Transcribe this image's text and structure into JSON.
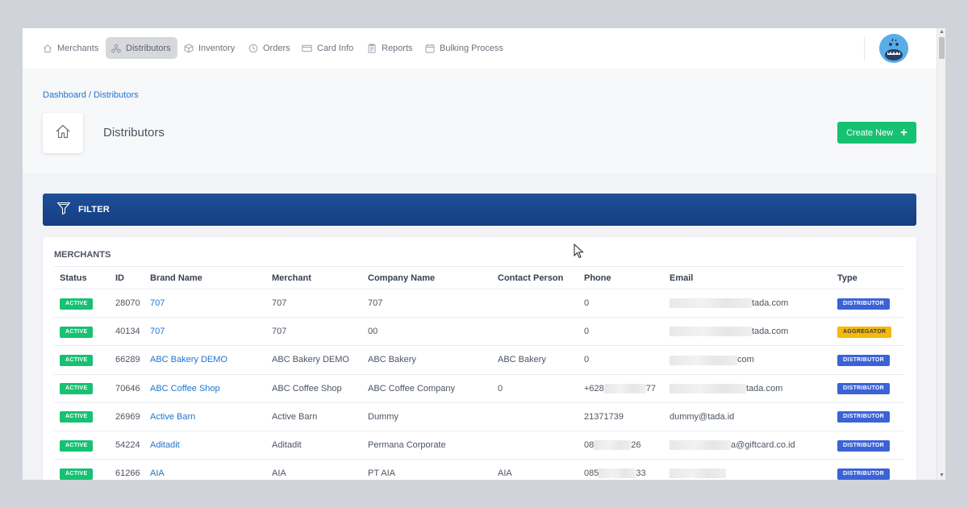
{
  "nav": {
    "items": [
      {
        "label": "Merchants",
        "icon": "home-icon"
      },
      {
        "label": "Distributors",
        "icon": "network-icon",
        "active": true
      },
      {
        "label": "Inventory",
        "icon": "box-icon"
      },
      {
        "label": "Orders",
        "icon": "clock-icon"
      },
      {
        "label": "Card Info",
        "icon": "card-icon"
      },
      {
        "label": "Reports",
        "icon": "clipboard-icon"
      },
      {
        "label": "Bulking Process",
        "icon": "calendar-icon"
      }
    ]
  },
  "header": {
    "breadcrumb": "Dashboard / Distributors",
    "title": "Distributors",
    "create_label": "Create New"
  },
  "filter": {
    "label": "FILTER"
  },
  "table": {
    "title": "MERCHANTS",
    "columns": [
      "Status",
      "ID",
      "Brand Name",
      "Merchant",
      "Company Name",
      "Contact Person",
      "Phone",
      "Email",
      "Type"
    ],
    "rows": [
      {
        "status": "ACTIVE",
        "id": "28070",
        "brand": "707",
        "merchant": "707",
        "company": "707",
        "contact": "",
        "phone": "0",
        "email_suffix": "tada.com",
        "type": "DISTRIBUTOR"
      },
      {
        "status": "ACTIVE",
        "id": "40134",
        "brand": "707",
        "merchant": "707",
        "company": "00",
        "contact": "",
        "phone": "0",
        "email_suffix": "tada.com",
        "type": "AGGREGATOR"
      },
      {
        "status": "ACTIVE",
        "id": "66289",
        "brand": "ABC Bakery DEMO",
        "merchant": "ABC Bakery DEMO",
        "company": "ABC Bakery",
        "contact": "ABC Bakery",
        "phone": "0",
        "email_suffix": "com",
        "type": "DISTRIBUTOR"
      },
      {
        "status": "ACTIVE",
        "id": "70646",
        "brand": "ABC Coffee Shop",
        "merchant": "ABC Coffee Shop",
        "company": "ABC Coffee Company",
        "contact": "0",
        "phone_prefix": "+628",
        "phone_suffix": "77",
        "email_suffix": "tada.com",
        "type": "DISTRIBUTOR"
      },
      {
        "status": "ACTIVE",
        "id": "26969",
        "brand": "Active Barn",
        "merchant": "Active Barn",
        "company": "Dummy",
        "contact": "",
        "phone": "21371739",
        "email": "dummy@tada.id",
        "type": "DISTRIBUTOR"
      },
      {
        "status": "ACTIVE",
        "id": "54224",
        "brand": "Aditadit",
        "merchant": "Aditadit",
        "company": "Permana Corporate",
        "contact": "",
        "phone_prefix": "08",
        "phone_suffix": "26",
        "email_suffix": "a@giftcard.co.id",
        "type": "DISTRIBUTOR"
      },
      {
        "status": "ACTIVE",
        "id": "61266",
        "brand": "AIA",
        "merchant": "AIA",
        "company": "PT AIA",
        "contact": "AIA",
        "phone_prefix": "085",
        "phone_suffix": "33",
        "email_suffix": "",
        "type": "DISTRIBUTOR"
      }
    ]
  }
}
